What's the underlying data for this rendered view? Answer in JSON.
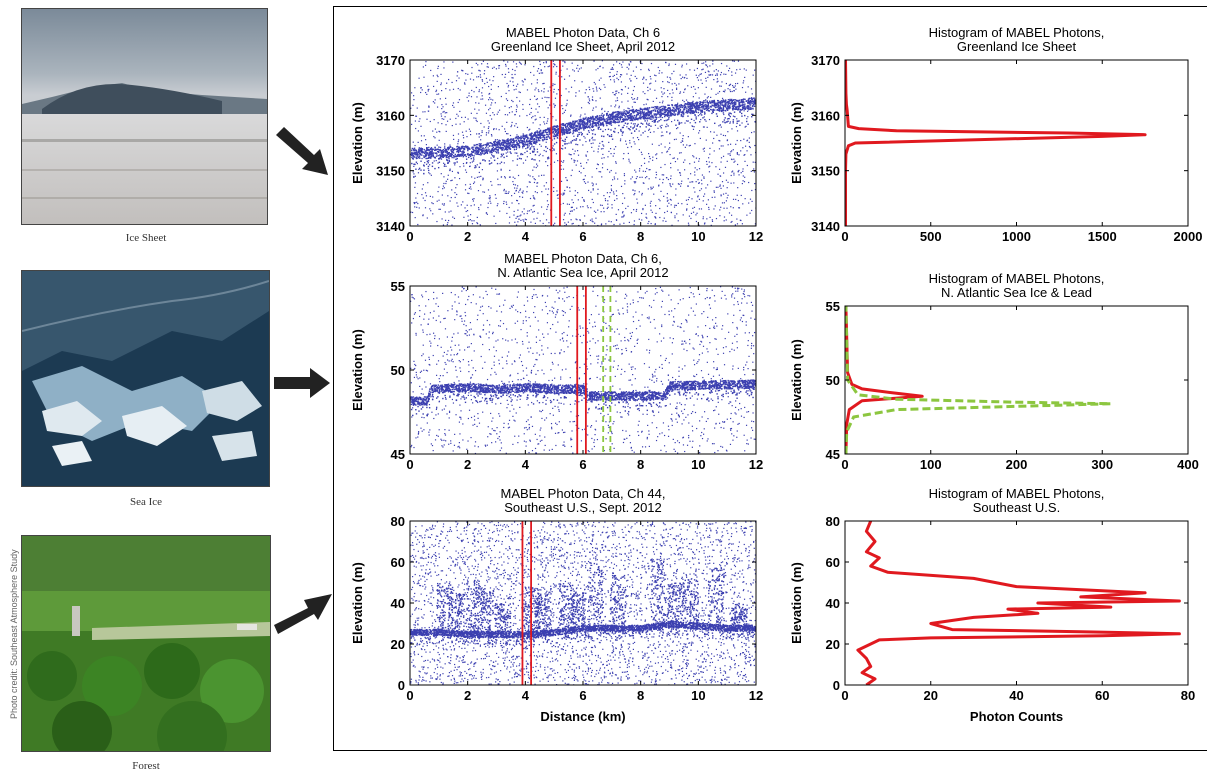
{
  "photos": [
    {
      "caption": "Ice Sheet"
    },
    {
      "caption": "Sea Ice"
    },
    {
      "caption": "Forest"
    }
  ],
  "photo_credit": "Photo credit: Southeast Atmosphere Study",
  "colors": {
    "photon": "#3b3fb0",
    "red": "#e0191f",
    "green": "#8cc63f",
    "arrow": "#222222"
  },
  "chart_data": [
    {
      "type": "scatter",
      "title": [
        "MABEL Photon Data, Ch 6",
        "Greenland Ice Sheet, April 2012"
      ],
      "xlabel": "",
      "ylabel": "Elevation (m)",
      "xlim": [
        0,
        12
      ],
      "ylim": [
        3140,
        3170
      ],
      "xticks": [
        "0",
        "2",
        "4",
        "6",
        "8",
        "10",
        "12"
      ],
      "yticks": [
        "3140",
        "3150",
        "3160",
        "3170"
      ],
      "surface": [
        [
          0,
          3153.2
        ],
        [
          2,
          3153.6
        ],
        [
          3,
          3154.5
        ],
        [
          4,
          3155.6
        ],
        [
          5,
          3157.2
        ],
        [
          6,
          3158.6
        ],
        [
          7,
          3159.7
        ],
        [
          8,
          3160.4
        ],
        [
          9,
          3161
        ],
        [
          10,
          3161.6
        ],
        [
          11,
          3162
        ],
        [
          12,
          3162.3
        ]
      ],
      "surface_band": 2,
      "noise_points": 2200,
      "vbands": [
        {
          "color": "red",
          "style": "solid",
          "x": [
            4.9,
            5.2
          ]
        }
      ]
    },
    {
      "type": "line",
      "title": [
        "Histogram of MABEL Photons,",
        "Greenland Ice Sheet"
      ],
      "xlabel": "",
      "ylabel": "Elevation (m)",
      "xlim": [
        0,
        2000
      ],
      "ylim": [
        3140,
        3170
      ],
      "xticks": [
        "0",
        "500",
        "1000",
        "1500",
        "2000"
      ],
      "yticks": [
        "3140",
        "3150",
        "3160",
        "3170"
      ],
      "series": [
        {
          "color": "red",
          "style": "solid",
          "points": [
            [
              3,
              3140
            ],
            [
              3,
              3150
            ],
            [
              5,
              3153
            ],
            [
              20,
              3154.5
            ],
            [
              60,
              3155
            ],
            [
              1500,
              3156.2
            ],
            [
              1750,
              3156.5
            ],
            [
              1300,
              3156.8
            ],
            [
              300,
              3157.2
            ],
            [
              80,
              3157.6
            ],
            [
              20,
              3158
            ],
            [
              12,
              3161
            ],
            [
              8,
              3162
            ],
            [
              5,
              3164
            ],
            [
              3,
              3170
            ]
          ]
        }
      ]
    },
    {
      "type": "scatter",
      "title": [
        "MABEL Photon Data, Ch 6,",
        "N. Atlantic Sea Ice, April 2012"
      ],
      "xlabel": "",
      "ylabel": "Elevation (m)",
      "xlim": [
        0,
        12
      ],
      "ylim": [
        45,
        55
      ],
      "xticks": [
        "0",
        "2",
        "4",
        "6",
        "8",
        "10",
        "12"
      ],
      "yticks": [
        "45",
        "50",
        "55"
      ],
      "surface": [
        [
          0,
          48.2
        ],
        [
          0.6,
          48.2
        ],
        [
          0.7,
          48.9
        ],
        [
          2,
          49
        ],
        [
          3,
          48.9
        ],
        [
          4,
          49
        ],
        [
          5,
          48.9
        ],
        [
          6,
          48.9
        ],
        [
          6.2,
          48.5
        ],
        [
          8.8,
          48.5
        ],
        [
          9,
          49.1
        ],
        [
          12,
          49.2
        ]
      ],
      "surface_band": 0.5,
      "noise_points": 1500,
      "vbands": [
        {
          "color": "red",
          "style": "solid",
          "x": [
            5.8,
            6.1
          ]
        },
        {
          "color": "green",
          "style": "dashed",
          "x": [
            6.7,
            6.95
          ]
        }
      ]
    },
    {
      "type": "line",
      "title": [
        "Histogram of MABEL Photons,",
        "N. Atlantic Sea Ice & Lead"
      ],
      "xlabel": "",
      "ylabel": "Elevation (m)",
      "xlim": [
        0,
        400
      ],
      "ylim": [
        45,
        55
      ],
      "xticks": [
        "0",
        "100",
        "200",
        "300",
        "400"
      ],
      "yticks": [
        "45",
        "50",
        "55"
      ],
      "series": [
        {
          "color": "red",
          "style": "solid",
          "points": [
            [
              1,
              45
            ],
            [
              2,
              47
            ],
            [
              5,
              48
            ],
            [
              20,
              48.6
            ],
            [
              90,
              48.9
            ],
            [
              60,
              49.1
            ],
            [
              20,
              49.4
            ],
            [
              8,
              49.7
            ],
            [
              3,
              50.5
            ],
            [
              1,
              55
            ]
          ]
        },
        {
          "color": "green",
          "style": "dashed",
          "points": [
            [
              1,
              45
            ],
            [
              2,
              46.5
            ],
            [
              10,
              47.5
            ],
            [
              60,
              48
            ],
            [
              250,
              48.3
            ],
            [
              310,
              48.4
            ],
            [
              200,
              48.5
            ],
            [
              60,
              48.7
            ],
            [
              15,
              49
            ],
            [
              3,
              50
            ],
            [
              1,
              55
            ]
          ]
        }
      ]
    },
    {
      "type": "scatter",
      "title": [
        "MABEL Photon Data, Ch 44,",
        "Southeast U.S., Sept. 2012"
      ],
      "xlabel": "Distance (km)",
      "ylabel": "Elevation (m)",
      "xlim": [
        0,
        12
      ],
      "ylim": [
        0,
        80
      ],
      "xticks": [
        "0",
        "2",
        "4",
        "6",
        "8",
        "10",
        "12"
      ],
      "yticks": [
        "0",
        "20",
        "40",
        "60",
        "80"
      ],
      "surface": [
        [
          0,
          26
        ],
        [
          1,
          26
        ],
        [
          2,
          25
        ],
        [
          3,
          25
        ],
        [
          4,
          25
        ],
        [
          5,
          26
        ],
        [
          6,
          28
        ],
        [
          7,
          28
        ],
        [
          8,
          28
        ],
        [
          9,
          30
        ],
        [
          10,
          29
        ],
        [
          11,
          28
        ],
        [
          12,
          28
        ]
      ],
      "surface_band": 3,
      "canopy": [
        [
          1.2,
          50
        ],
        [
          1.6,
          45
        ],
        [
          2.2,
          52
        ],
        [
          2.6,
          47
        ],
        [
          3.2,
          40
        ],
        [
          4.2,
          48
        ],
        [
          4.6,
          45
        ],
        [
          5.4,
          50
        ],
        [
          5.8,
          46
        ],
        [
          6.4,
          60
        ],
        [
          7.2,
          55
        ],
        [
          8.6,
          62
        ],
        [
          9.2,
          50
        ],
        [
          9.7,
          52
        ],
        [
          10.6,
          58
        ],
        [
          11.4,
          40
        ]
      ],
      "noise_points": 3600,
      "vbands": [
        {
          "color": "red",
          "style": "solid",
          "x": [
            3.9,
            4.2
          ]
        }
      ]
    },
    {
      "type": "line",
      "title": [
        "Histogram of MABEL Photons,",
        "Southeast U.S."
      ],
      "xlabel": "Photon Counts",
      "ylabel": "Elevation (m)",
      "xlim": [
        0,
        80
      ],
      "ylim": [
        0,
        80
      ],
      "xticks": [
        "0",
        "20",
        "40",
        "60",
        "80"
      ],
      "yticks": [
        "0",
        "20",
        "40",
        "60",
        "80"
      ],
      "series": [
        {
          "color": "red",
          "style": "solid",
          "points": [
            [
              5,
              0
            ],
            [
              7,
              3
            ],
            [
              4,
              6
            ],
            [
              6,
              9
            ],
            [
              5,
              13
            ],
            [
              3,
              17
            ],
            [
              6,
              20
            ],
            [
              8,
              22
            ],
            [
              20,
              23
            ],
            [
              60,
              24
            ],
            [
              78,
              25
            ],
            [
              55,
              26
            ],
            [
              25,
              27
            ],
            [
              20,
              30
            ],
            [
              30,
              33
            ],
            [
              45,
              35
            ],
            [
              38,
              37
            ],
            [
              62,
              38
            ],
            [
              45,
              40
            ],
            [
              78,
              41
            ],
            [
              55,
              43
            ],
            [
              70,
              45
            ],
            [
              40,
              48
            ],
            [
              30,
              52
            ],
            [
              10,
              55
            ],
            [
              6,
              58
            ],
            [
              8,
              62
            ],
            [
              5,
              65
            ],
            [
              7,
              70
            ],
            [
              5,
              75
            ],
            [
              6,
              80
            ]
          ]
        }
      ]
    }
  ]
}
